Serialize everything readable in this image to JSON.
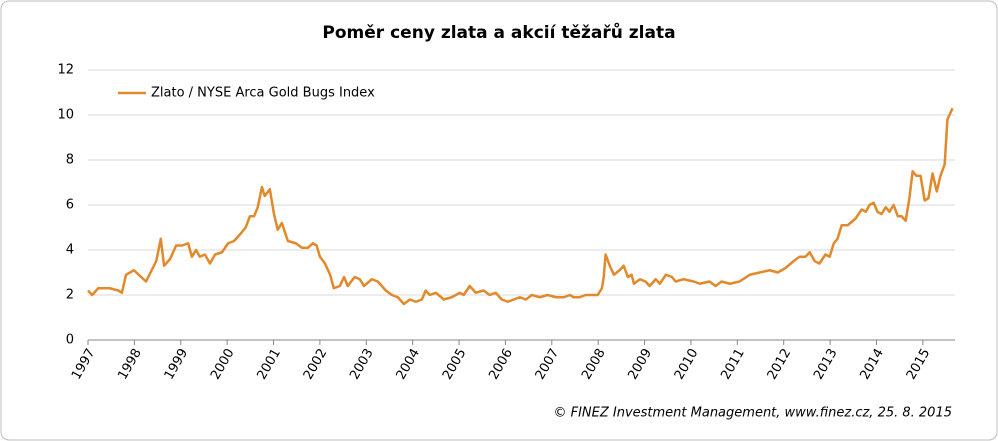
{
  "chart_data": {
    "type": "line",
    "title": "Poměr ceny zlata a akcií těžařů zlata",
    "source": "© FINEZ Investment Management, www.finez.cz, 25. 8. 2015",
    "x": [
      1997,
      1997.09,
      1997.22,
      1997.47,
      1997.65,
      1997.73,
      1997.82,
      1997.99,
      1998.25,
      1998.47,
      1998.57,
      1998.64,
      1998.77,
      1998.9,
      1999.03,
      1999.16,
      1999.24,
      1999.33,
      1999.41,
      1999.52,
      1999.63,
      1999.74,
      1999.89,
      2000.02,
      2000.15,
      2000.28,
      2000.4,
      2000.49,
      2000.58,
      2000.66,
      2000.75,
      2000.81,
      2000.92,
      2001.01,
      2001.09,
      2001.18,
      2001.31,
      2001.48,
      2001.61,
      2001.74,
      2001.85,
      2001.93,
      2002,
      2002.11,
      2002.22,
      2002.3,
      2002.43,
      2002.52,
      2002.6,
      2002.75,
      2002.86,
      2002.95,
      2003.12,
      2003.25,
      2003.42,
      2003.55,
      2003.68,
      2003.81,
      2003.94,
      2004.07,
      2004.2,
      2004.28,
      2004.37,
      2004.5,
      2004.67,
      2004.84,
      2005.02,
      2005.1,
      2005.23,
      2005.36,
      2005.53,
      2005.66,
      2005.79,
      2005.92,
      2006.05,
      2006.18,
      2006.31,
      2006.44,
      2006.57,
      2006.74,
      2006.91,
      2007.09,
      2007.26,
      2007.39,
      2007.47,
      2007.6,
      2007.73,
      2007.86,
      2007.99,
      2008.08,
      2008.12,
      2008.16,
      2008.25,
      2008.34,
      2008.46,
      2008.55,
      2008.64,
      2008.72,
      2008.77,
      2008.9,
      2009.02,
      2009.11,
      2009.24,
      2009.33,
      2009.46,
      2009.59,
      2009.67,
      2009.84,
      2010.06,
      2010.19,
      2010.4,
      2010.53,
      2010.66,
      2010.84,
      2011.05,
      2011.27,
      2011.48,
      2011.7,
      2011.87,
      2012.04,
      2012.21,
      2012.34,
      2012.47,
      2012.56,
      2012.67,
      2012.77,
      2012.9,
      2012.99,
      2013.08,
      2013.16,
      2013.25,
      2013.38,
      2013.55,
      2013.68,
      2013.77,
      2013.85,
      2013.94,
      2014.02,
      2014.11,
      2014.2,
      2014.28,
      2014.37,
      2014.46,
      2014.54,
      2014.63,
      2014.71,
      2014.78,
      2014.86,
      2014.95,
      2015.04,
      2015.12,
      2015.21,
      2015.3,
      2015.38,
      2015.47,
      2015.53,
      2015.64
    ],
    "series": [
      {
        "name": "Zlato / NYSE Arca Gold Bugs Index",
        "color": "#e2892b",
        "values": [
          2.2,
          2.0,
          2.3,
          2.3,
          2.2,
          2.1,
          2.9,
          3.1,
          2.6,
          3.5,
          4.5,
          3.3,
          3.6,
          4.2,
          4.2,
          4.3,
          3.7,
          4.0,
          3.7,
          3.8,
          3.4,
          3.8,
          3.9,
          4.3,
          4.4,
          4.7,
          5.0,
          5.5,
          5.5,
          5.9,
          6.8,
          6.4,
          6.7,
          5.6,
          4.9,
          5.2,
          4.4,
          4.3,
          4.1,
          4.1,
          4.3,
          4.2,
          3.7,
          3.4,
          2.9,
          2.3,
          2.4,
          2.8,
          2.4,
          2.8,
          2.7,
          2.4,
          2.7,
          2.6,
          2.2,
          2.0,
          1.9,
          1.6,
          1.8,
          1.7,
          1.8,
          2.2,
          2.0,
          2.1,
          1.8,
          1.9,
          2.1,
          2.0,
          2.4,
          2.1,
          2.2,
          2.0,
          2.1,
          1.8,
          1.7,
          1.8,
          1.9,
          1.8,
          2.0,
          1.9,
          2.0,
          1.9,
          1.9,
          2.0,
          1.9,
          1.9,
          2.0,
          2.0,
          2.0,
          2.3,
          2.8,
          3.8,
          3.3,
          2.9,
          3.1,
          3.3,
          2.8,
          2.9,
          2.5,
          2.7,
          2.6,
          2.4,
          2.7,
          2.5,
          2.9,
          2.8,
          2.6,
          2.7,
          2.6,
          2.5,
          2.6,
          2.4,
          2.6,
          2.5,
          2.6,
          2.9,
          3.0,
          3.1,
          3.0,
          3.2,
          3.5,
          3.7,
          3.7,
          3.9,
          3.5,
          3.4,
          3.8,
          3.7,
          4.3,
          4.5,
          5.1,
          5.1,
          5.4,
          5.8,
          5.7,
          6.0,
          6.1,
          5.7,
          5.6,
          5.9,
          5.7,
          6.0,
          5.5,
          5.5,
          5.3,
          6.3,
          7.5,
          7.3,
          7.3,
          6.2,
          6.3,
          7.4,
          6.6,
          7.3,
          7.8,
          9.8,
          10.3
        ]
      }
    ],
    "xlim": [
      1997,
      2015.65
    ],
    "xticks": [
      1997,
      1998,
      1999,
      2000,
      2001,
      2002,
      2003,
      2004,
      2005,
      2006,
      2007,
      2008,
      2009,
      2010,
      2011,
      2012,
      2013,
      2014,
      2015
    ],
    "ylim": [
      0,
      12
    ],
    "yticks": [
      0,
      2,
      4,
      6,
      8,
      10,
      12
    ],
    "grid": true,
    "legend": "top-left"
  }
}
